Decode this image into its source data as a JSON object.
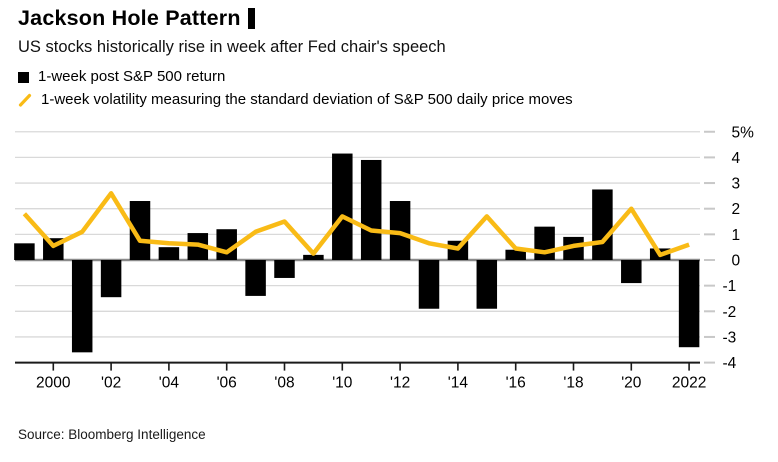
{
  "source": "Source: Bloomberg Intelligence",
  "colors": {
    "bar": "#000000",
    "line": "#F9BB16",
    "grid": "#d9d9d9",
    "zero_line": "#8a8a8a",
    "axis": "#1a1a1a",
    "tick_dash": "#c8c8c8",
    "text": "#000000",
    "background": "#ffffff"
  },
  "chart_data": {
    "type": "bar",
    "title": "Jackson Hole Pattern",
    "subtitle": "US stocks historically rise in week after Fed chair's speech",
    "x": [
      1999,
      2000,
      2001,
      2002,
      2003,
      2004,
      2005,
      2006,
      2007,
      2008,
      2009,
      2010,
      2011,
      2012,
      2013,
      2014,
      2015,
      2016,
      2017,
      2018,
      2019,
      2020,
      2021,
      2022
    ],
    "series": [
      {
        "name": "1-week post S&P 500 return",
        "type": "bar",
        "color": "#000000",
        "values": [
          0.65,
          0.85,
          -3.6,
          -1.45,
          2.3,
          0.5,
          1.05,
          1.2,
          -1.4,
          -0.7,
          0.2,
          4.15,
          3.9,
          2.3,
          -1.9,
          0.75,
          -1.9,
          0.4,
          1.3,
          0.9,
          2.75,
          -0.9,
          0.45,
          -3.4
        ]
      },
      {
        "name": "1-week volatility measuring the standard deviation of S&P 500 daily price moves",
        "type": "line",
        "color": "#F9BB16",
        "values": [
          1.8,
          0.55,
          1.1,
          2.6,
          0.75,
          0.65,
          0.6,
          0.3,
          1.1,
          1.5,
          0.25,
          1.7,
          1.15,
          1.05,
          0.65,
          0.45,
          1.7,
          0.45,
          0.3,
          0.55,
          0.7,
          2.0,
          0.2,
          0.6
        ]
      }
    ],
    "x_tick_years": [
      2000,
      2002,
      2004,
      2006,
      2008,
      2010,
      2012,
      2014,
      2016,
      2018,
      2020,
      2022
    ],
    "x_tick_labels": [
      "2000",
      "'02",
      "'04",
      "'06",
      "'08",
      "'10",
      "'12",
      "'14",
      "'16",
      "'18",
      "'20",
      "2022"
    ],
    "y_ticks": [
      5,
      4,
      3,
      2,
      1,
      0,
      -1,
      -2,
      -3,
      -4
    ],
    "y_tick_labels": [
      "5%",
      "4",
      "3",
      "2",
      "1",
      "0",
      "-1",
      "-2",
      "-3",
      "-4"
    ],
    "ylim": [
      -4,
      5
    ],
    "unit": "%",
    "grid": true,
    "legend_position": "top-left"
  }
}
